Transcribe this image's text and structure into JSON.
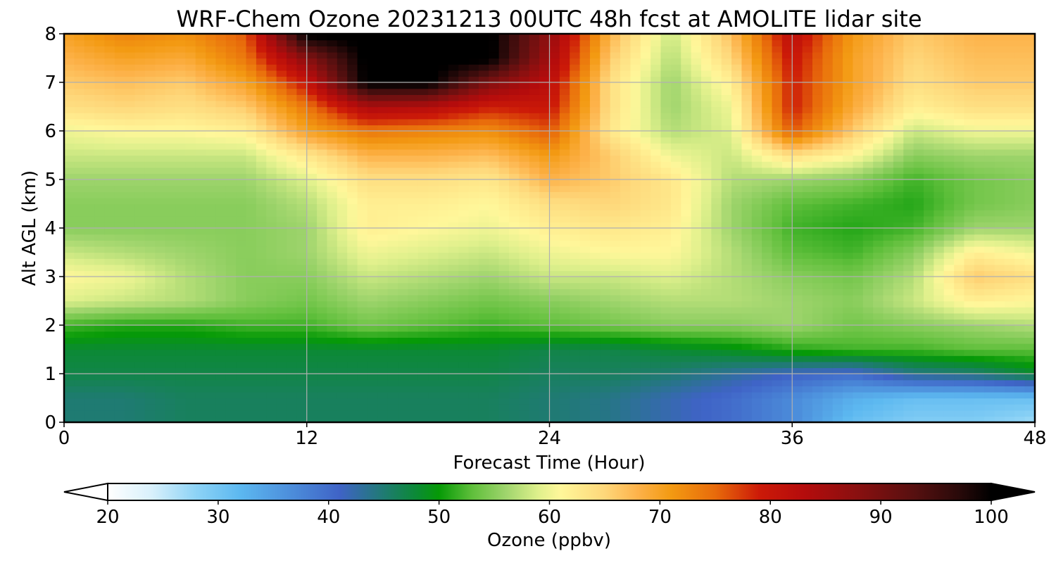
{
  "chart_data": {
    "type": "heatmap",
    "title": "WRF-Chem Ozone  20231213 00UTC 48h fcst at AMOLITE lidar site",
    "xlabel": "Forecast Time (Hour)",
    "ylabel": "Alt AGL (km)",
    "xlim": [
      0,
      48
    ],
    "ylim": [
      0,
      8
    ],
    "x_ticks": [
      0,
      12,
      24,
      36,
      48
    ],
    "y_ticks": [
      0,
      1,
      2,
      3,
      4,
      5,
      6,
      7,
      8
    ],
    "grid": true,
    "z_units": "ppbv",
    "x": [
      0,
      3,
      6,
      9,
      12,
      15,
      18,
      21,
      24,
      27,
      30,
      33,
      36,
      39,
      42,
      45,
      48
    ],
    "y": [
      0,
      0.5,
      1,
      1.5,
      2,
      2.5,
      3,
      3.5,
      4,
      4.5,
      5,
      5.5,
      6,
      6.5,
      7,
      7.5,
      8
    ],
    "z": [
      [
        45,
        45,
        46,
        46,
        46,
        46,
        46,
        46,
        45,
        44,
        42,
        40,
        37,
        31,
        29,
        29,
        27
      ],
      [
        45,
        45,
        46,
        46,
        46,
        46,
        46,
        46,
        45,
        44,
        42,
        40,
        37,
        33,
        31,
        31,
        31
      ],
      [
        47,
        47,
        47,
        47,
        47,
        47,
        47,
        47,
        46,
        46,
        45,
        43,
        41,
        40,
        44,
        45,
        48
      ],
      [
        48,
        48,
        48,
        48,
        48,
        48,
        48,
        48,
        47,
        47,
        48,
        49,
        51,
        52,
        52,
        53,
        53
      ],
      [
        52,
        51,
        51,
        52,
        52,
        54,
        53,
        52,
        53,
        54,
        55,
        55,
        56,
        54,
        55,
        56,
        57
      ],
      [
        59,
        58,
        57,
        55,
        54,
        56,
        55,
        54,
        55,
        56,
        57,
        57,
        56,
        55,
        58,
        62,
        61
      ],
      [
        61,
        60,
        57,
        55,
        55,
        58,
        57,
        56,
        58,
        58,
        59,
        57,
        55,
        54,
        57,
        66,
        64
      ],
      [
        58,
        57,
        56,
        55,
        56,
        60,
        59,
        58,
        60,
        61,
        61,
        57,
        53,
        52,
        55,
        62,
        60
      ],
      [
        55,
        55,
        55,
        55,
        56,
        62,
        61,
        60,
        62,
        63,
        62,
        56,
        52,
        51,
        52,
        56,
        56
      ],
      [
        55,
        55,
        55,
        55,
        57,
        62,
        62,
        61,
        64,
        65,
        63,
        56,
        53,
        52,
        51,
        54,
        55
      ],
      [
        56,
        56,
        56,
        56,
        59,
        64,
        64,
        63,
        68,
        66,
        63,
        57,
        56,
        55,
        52,
        54,
        55
      ],
      [
        58,
        58,
        58,
        58,
        63,
        68,
        68,
        67,
        71,
        66,
        60,
        58,
        64,
        61,
        55,
        56,
        56
      ],
      [
        60,
        61,
        61,
        62,
        70,
        74,
        73,
        72,
        76,
        63,
        57,
        59,
        76,
        66,
        58,
        60,
        60
      ],
      [
        64,
        65,
        64,
        66,
        74,
        84,
        83,
        79,
        80,
        64,
        56,
        60,
        79,
        69,
        62,
        64,
        64
      ],
      [
        66,
        67,
        66,
        70,
        80,
        101,
        101,
        89,
        82,
        64,
        56,
        62,
        79,
        70,
        64,
        66,
        66
      ],
      [
        68,
        70,
        69,
        74,
        88,
        101,
        101,
        101,
        85,
        66,
        57,
        65,
        80,
        70,
        65,
        67,
        67
      ],
      [
        70,
        73,
        72,
        76,
        101,
        101,
        101,
        101,
        87,
        68,
        58,
        67,
        82,
        71,
        66,
        68,
        68
      ]
    ],
    "colorbar": {
      "label": "Ozone  (ppbv)",
      "min": 20,
      "max": 100,
      "ticks": [
        20,
        30,
        40,
        50,
        60,
        70,
        80,
        90,
        100
      ],
      "extend": "both",
      "stops": [
        {
          "value": 20,
          "color": "#ffffff"
        },
        {
          "value": 24,
          "color": "#d8f0fb"
        },
        {
          "value": 28,
          "color": "#8dd3f6"
        },
        {
          "value": 32,
          "color": "#5cb8f0"
        },
        {
          "value": 37,
          "color": "#4b8ad9"
        },
        {
          "value": 41,
          "color": "#3f63c6"
        },
        {
          "value": 45,
          "color": "#1f7b72"
        },
        {
          "value": 48,
          "color": "#0b8a34"
        },
        {
          "value": 50,
          "color": "#069a06"
        },
        {
          "value": 53,
          "color": "#5fbf3b"
        },
        {
          "value": 56,
          "color": "#9ed46c"
        },
        {
          "value": 59,
          "color": "#dff08c"
        },
        {
          "value": 61,
          "color": "#fff79a"
        },
        {
          "value": 65,
          "color": "#fed77a"
        },
        {
          "value": 68,
          "color": "#fdb24a"
        },
        {
          "value": 71,
          "color": "#f39a12"
        },
        {
          "value": 75,
          "color": "#e86b0b"
        },
        {
          "value": 79,
          "color": "#cc1a08"
        },
        {
          "value": 83,
          "color": "#b50c0c"
        },
        {
          "value": 88,
          "color": "#881010"
        },
        {
          "value": 93,
          "color": "#571010"
        },
        {
          "value": 97,
          "color": "#2a0a0a"
        },
        {
          "value": 100,
          "color": "#000000"
        }
      ]
    }
  }
}
